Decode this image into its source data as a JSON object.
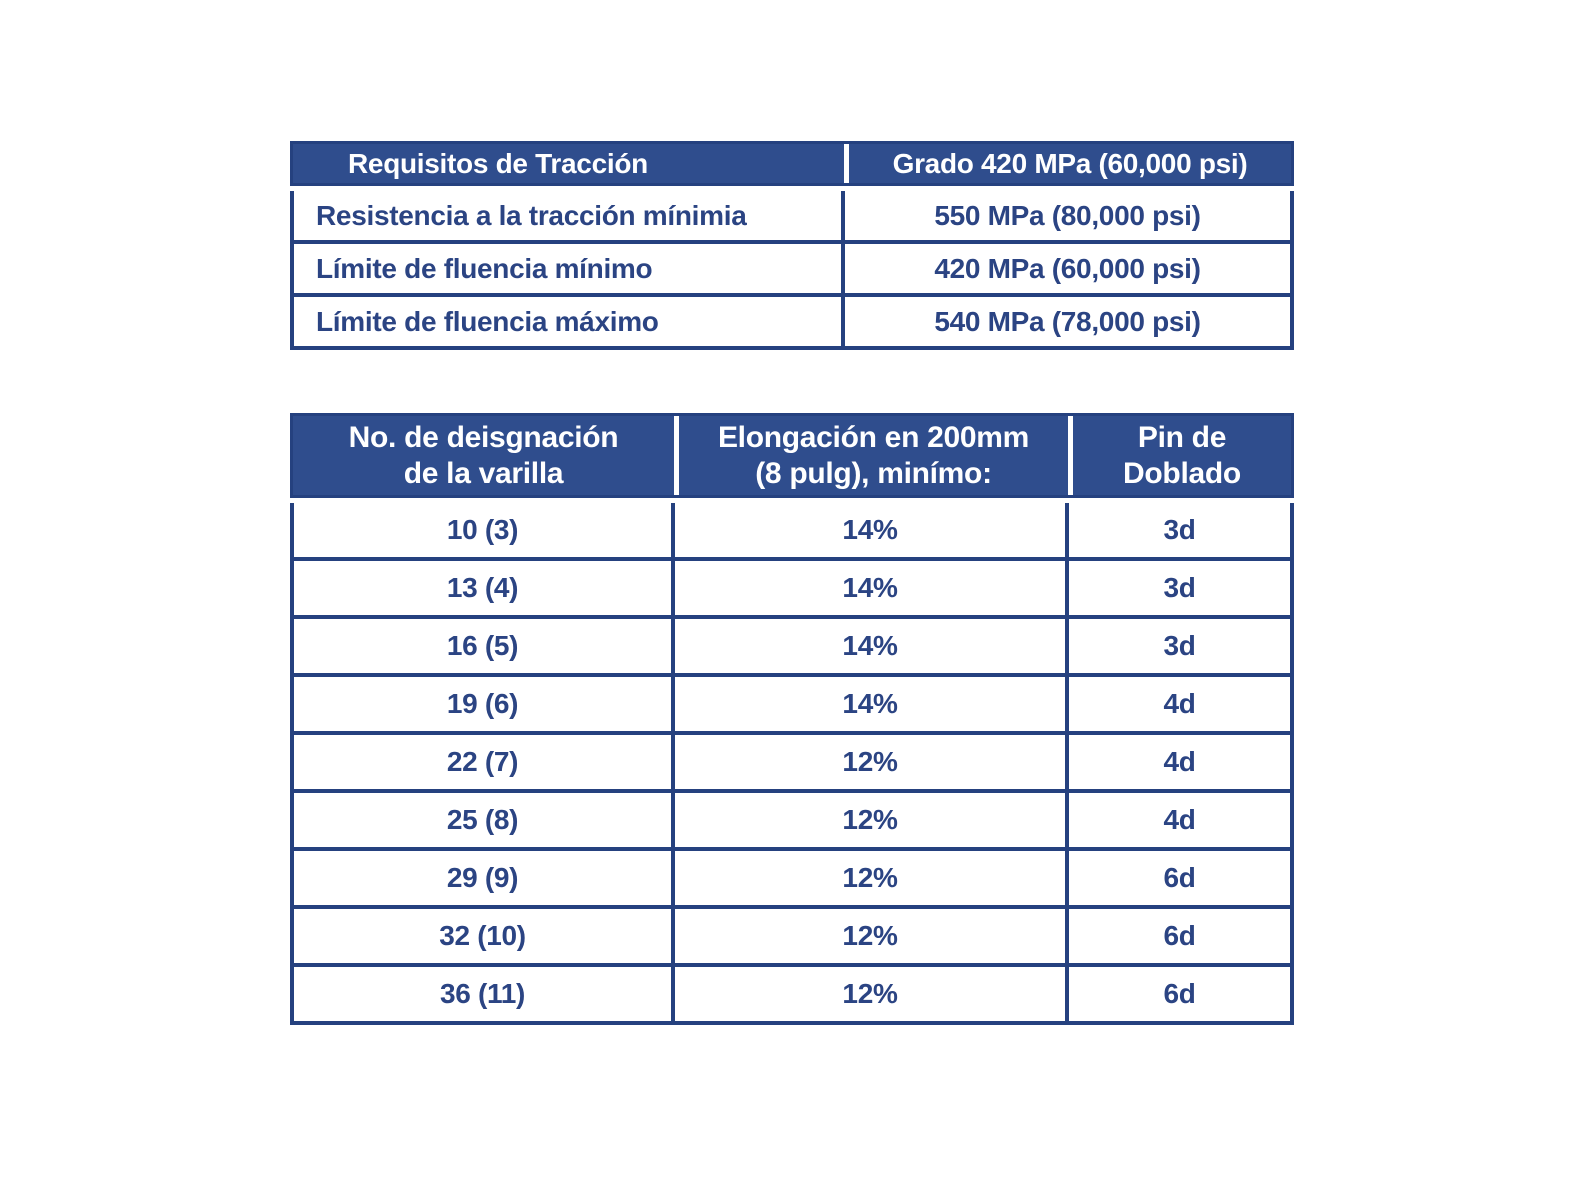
{
  "colors": {
    "header_bg": "#2F4D8D",
    "border": "#25417F",
    "text": "#2B4483",
    "header_text": "#FFFFFF",
    "page_bg": "#FFFFFF"
  },
  "tension_table": {
    "header": {
      "col1": "Requisitos de Tracción",
      "col2": "Grado 420 MPa (60,000 psi)"
    },
    "rows": [
      {
        "label": "Resistencia a la tracción mínimia",
        "value": "550 MPa (80,000 psi)"
      },
      {
        "label": "Límite de fluencia mínimo",
        "value": "420 MPa (60,000 psi)"
      },
      {
        "label": "Límite de fluencia máximo",
        "value": "540 MPa (78,000 psi)"
      }
    ]
  },
  "rebar_table": {
    "header": {
      "col1": "No. de deisgnación\nde la varilla",
      "col2": "Elongación en 200mm\n(8 pulg), minímo:",
      "col3": "Pin de\nDoblado"
    },
    "rows": [
      {
        "designation": "10 (3)",
        "elongation": "14%",
        "pin": "3d"
      },
      {
        "designation": "13 (4)",
        "elongation": "14%",
        "pin": "3d"
      },
      {
        "designation": "16 (5)",
        "elongation": "14%",
        "pin": "3d"
      },
      {
        "designation": "19 (6)",
        "elongation": "14%",
        "pin": "4d"
      },
      {
        "designation": "22 (7)",
        "elongation": "12%",
        "pin": "4d"
      },
      {
        "designation": "25 (8)",
        "elongation": "12%",
        "pin": "4d"
      },
      {
        "designation": "29 (9)",
        "elongation": "12%",
        "pin": "6d"
      },
      {
        "designation": "32 (10)",
        "elongation": "12%",
        "pin": "6d"
      },
      {
        "designation": "36 (11)",
        "elongation": "12%",
        "pin": "6d"
      }
    ]
  }
}
